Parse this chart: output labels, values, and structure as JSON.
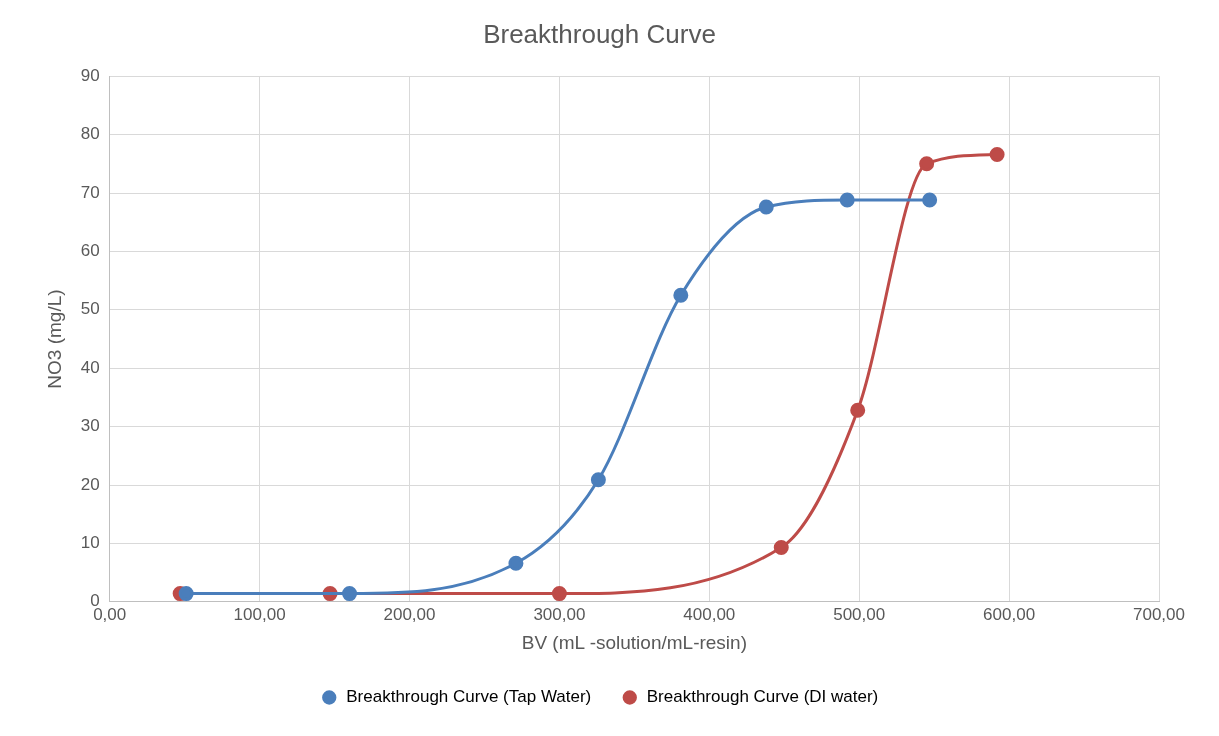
{
  "chart_data": {
    "type": "line",
    "title": "Breakthrough Curve",
    "xlabel": "BV (mL -solution/mL-resin)",
    "ylabel": "NO3 (mg/L)",
    "xlim": [
      0,
      700
    ],
    "xticks": [
      {
        "value": 0,
        "label": "0,00"
      },
      {
        "value": 100,
        "label": "100,00"
      },
      {
        "value": 200,
        "label": "200,00"
      },
      {
        "value": 300,
        "label": "300,00"
      },
      {
        "value": 400,
        "label": "400,00"
      },
      {
        "value": 500,
        "label": "500,00"
      },
      {
        "value": 600,
        "label": "600,00"
      },
      {
        "value": 700,
        "label": "700,00"
      }
    ],
    "ylim": [
      0,
      90
    ],
    "yticks": [
      0,
      10,
      20,
      30,
      40,
      50,
      60,
      70,
      80,
      90
    ],
    "grid": true,
    "legend": "bottom",
    "marker": "circle",
    "line_style": "solid",
    "series": [
      {
        "name": "Breakthrough Curve (Tap Water)",
        "color": "#4a7ebb",
        "x": [
          51,
          160,
          271,
          326,
          381,
          438,
          492,
          547
        ],
        "values": [
          1.4,
          1.4,
          6.6,
          20.9,
          52.5,
          67.6,
          68.8,
          68.8
        ]
      },
      {
        "name": "Breakthrough Curve (DI water)",
        "color": "#be4b48",
        "x": [
          47,
          147,
          300,
          448,
          499,
          545,
          592
        ],
        "values": [
          1.4,
          1.4,
          1.4,
          9.3,
          32.8,
          75,
          76.6
        ]
      }
    ]
  }
}
